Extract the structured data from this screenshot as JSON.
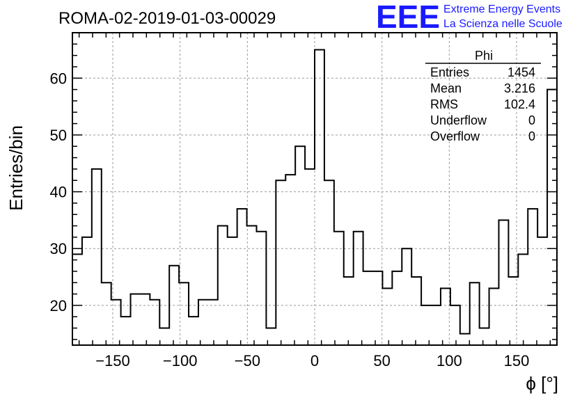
{
  "header": {
    "run_title": "ROMA-02-2019-01-03-00029",
    "logo_text": "EEE",
    "org_line1": "Extreme Energy Events",
    "org_line2": "La Scienza nelle Scuole",
    "brand_color": "#1a1aff"
  },
  "stats_box": {
    "name": "Phi",
    "rows": [
      {
        "label": "Entries",
        "value": "1454"
      },
      {
        "label": "Mean",
        "value": "3.216"
      },
      {
        "label": "RMS",
        "value": "102.4"
      },
      {
        "label": "Underflow",
        "value": "0"
      },
      {
        "label": "Overflow",
        "value": "0"
      }
    ]
  },
  "chart_data": {
    "type": "histogram",
    "title": "ROMA-02-2019-01-03-00029",
    "xlabel": "ϕ [°]",
    "ylabel": "Entries/bin",
    "xlim": [
      -180,
      180
    ],
    "ylim": [
      13,
      68
    ],
    "grid": true,
    "xticks": [
      -150,
      -100,
      -50,
      0,
      50,
      100,
      150
    ],
    "xtick_labels": [
      "−150",
      "−100",
      "−50",
      "0",
      "50",
      "100",
      "150"
    ],
    "yticks": [
      20,
      30,
      40,
      50,
      60
    ],
    "ytick_labels": [
      "20",
      "30",
      "40",
      "50",
      "60"
    ],
    "bin_width": 7.2,
    "bin_edges_start": -180,
    "values": [
      29,
      32,
      44,
      24,
      21,
      18,
      22,
      22,
      21,
      16,
      27,
      24,
      18,
      21,
      21,
      34,
      32,
      37,
      34,
      33,
      16,
      42,
      43,
      48,
      44,
      65,
      42,
      33,
      25,
      33,
      26,
      26,
      23,
      26,
      30,
      25,
      20,
      20,
      23,
      20,
      15,
      24,
      16,
      23,
      35,
      25,
      29,
      37,
      32,
      58
    ]
  }
}
